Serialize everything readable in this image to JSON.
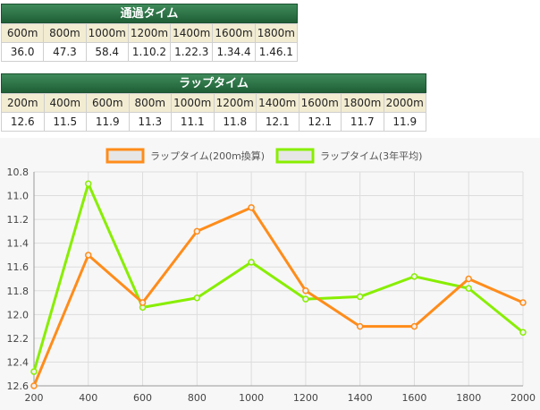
{
  "passing_table": {
    "title": "通過タイム",
    "headers": [
      "600m",
      "800m",
      "1000m",
      "1200m",
      "1400m",
      "1600m",
      "1800m"
    ],
    "values": [
      "36.0",
      "47.3",
      "58.4",
      "1.10.2",
      "1.22.3",
      "1.34.4",
      "1.46.1"
    ]
  },
  "lap_table": {
    "title": "ラップタイム",
    "headers": [
      "200m",
      "400m",
      "600m",
      "800m",
      "1000m",
      "1200m",
      "1400m",
      "1600m",
      "1800m",
      "2000m"
    ],
    "values": [
      "12.6",
      "11.5",
      "11.9",
      "11.3",
      "11.1",
      "11.8",
      "12.1",
      "12.1",
      "11.7",
      "11.9"
    ]
  },
  "chart_data": {
    "type": "line",
    "x": [
      200,
      400,
      600,
      800,
      1000,
      1200,
      1400,
      1600,
      1800,
      2000
    ],
    "series": [
      {
        "name": "ラップタイム(200m換算)",
        "color": "#ff8c1a",
        "values": [
          12.6,
          11.5,
          11.9,
          11.3,
          11.1,
          11.8,
          12.1,
          12.1,
          11.7,
          11.9
        ]
      },
      {
        "name": "ラップタイム(3年平均)",
        "color": "#88ee00",
        "values": [
          12.48,
          10.9,
          11.94,
          11.86,
          11.56,
          11.87,
          11.85,
          11.68,
          11.78,
          12.15
        ]
      }
    ],
    "x_ticks": [
      "200",
      "400",
      "600",
      "800",
      "1000",
      "1200",
      "1400",
      "1600",
      "1800",
      "2000"
    ],
    "y_ticks": [
      "10.8",
      "11.0",
      "11.2",
      "11.4",
      "11.6",
      "11.8",
      "12.0",
      "12.2",
      "12.4",
      "12.6"
    ],
    "ylim": [
      10.8,
      12.6
    ],
    "y_inverted": true,
    "grid": true,
    "legend_position": "top"
  }
}
